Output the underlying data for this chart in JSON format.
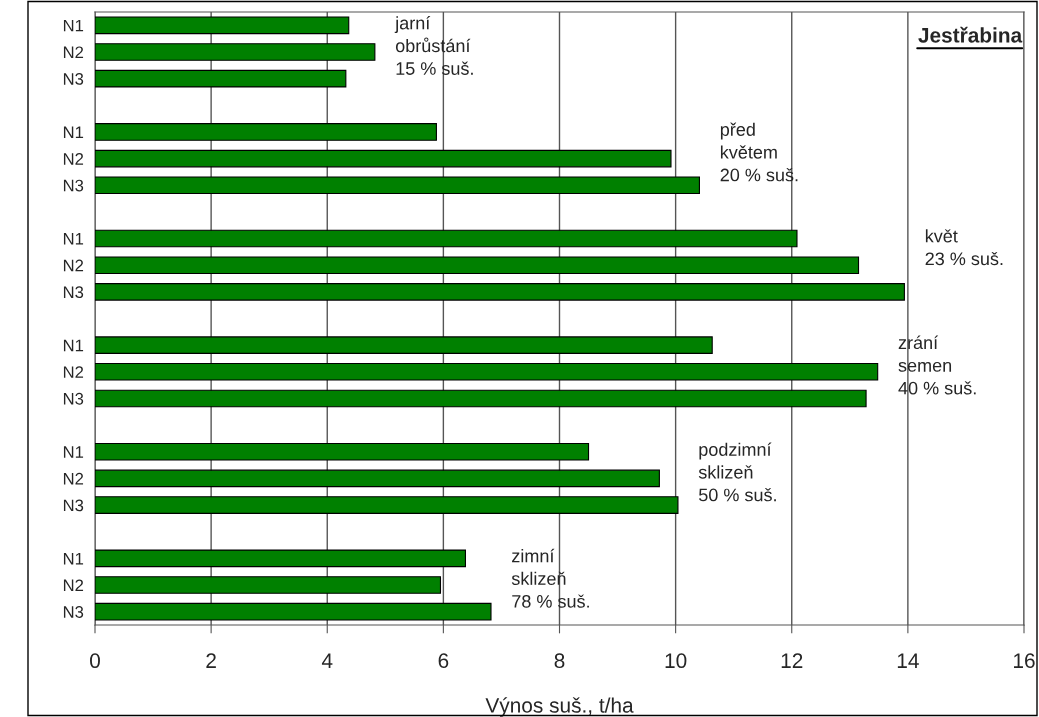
{
  "chart_data": {
    "type": "bar",
    "orientation": "horizontal",
    "title": "Jestřabina",
    "xlabel": "Výnos suš., t/ha",
    "categories": [
      "N1",
      "N2",
      "N3",
      null,
      "N1",
      "N2",
      "N3",
      null,
      "N1",
      "N2",
      "N3",
      null,
      "N1",
      "N2",
      "N3",
      null,
      "N1",
      "N2",
      "N3",
      null,
      "N1",
      "N2",
      "N3"
    ],
    "values": [
      4.37,
      4.82,
      4.32,
      null,
      5.88,
      9.92,
      10.41,
      null,
      12.09,
      13.15,
      13.94,
      null,
      10.63,
      13.48,
      13.28,
      null,
      8.5,
      9.72,
      10.04,
      null,
      6.38,
      5.95,
      6.82
    ],
    "color": "#008000",
    "xlim": [
      0,
      16
    ],
    "xticks": [
      0,
      2,
      4,
      6,
      8,
      10,
      12,
      14,
      16
    ],
    "grid": "x",
    "annotations": [
      "jarní\nobrůstání\n15 % suš.",
      "před\nkvětem\n20 % suš.",
      "květ\n23 % suš.",
      "zrání\nsemen\n40 % suš.",
      "podzimní\nsklizeň\n50 % suš.",
      "zimní\nsklizeň\n78 % suš."
    ]
  }
}
